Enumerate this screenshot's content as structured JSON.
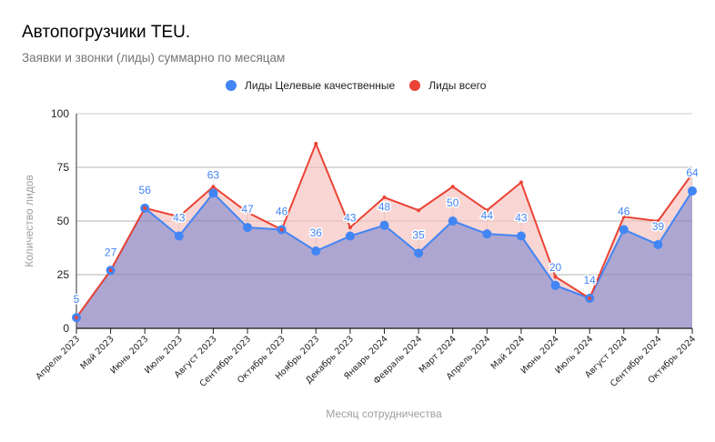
{
  "chart_data": {
    "type": "area",
    "title": "Автопогрузчики TEU.",
    "subtitle": "Заявки и звонки (лиды) суммарно по месяцам",
    "xlabel": "Месяц сотрудничества",
    "ylabel": "Количество лидов",
    "ylim": [
      0,
      100
    ],
    "yticks": [
      0,
      25,
      50,
      75,
      100
    ],
    "grid": true,
    "legend_position": "top",
    "categories": [
      "Апрель 2023",
      "Май 2023",
      "Июнь 2023",
      "Июль 2023",
      "Август 2023",
      "Сентябрь 2023",
      "Октябрь 2023",
      "Ноябрь 2023",
      "Декабрь 2023",
      "Январь 2024",
      "Февраль 2024",
      "Март 2024",
      "Апрель 2024",
      "Май 2024",
      "Июнь 2024",
      "Июль 2024",
      "Август 2024",
      "Сентябрь 2024",
      "Октябрь 2024"
    ],
    "series": [
      {
        "name": "Лиды Целевые качественные",
        "color": "#4285f4",
        "values": [
          5,
          27,
          56,
          43,
          63,
          47,
          46,
          36,
          43,
          48,
          35,
          50,
          44,
          43,
          20,
          14,
          46,
          39,
          64
        ],
        "data_labels": true
      },
      {
        "name": "Лиды всего",
        "color": "#ea4335",
        "values": [
          5,
          27,
          56,
          52,
          66,
          54,
          46,
          86,
          47,
          61,
          55,
          66,
          55,
          68,
          24,
          14,
          52,
          50,
          72
        ],
        "data_labels": false
      }
    ]
  }
}
